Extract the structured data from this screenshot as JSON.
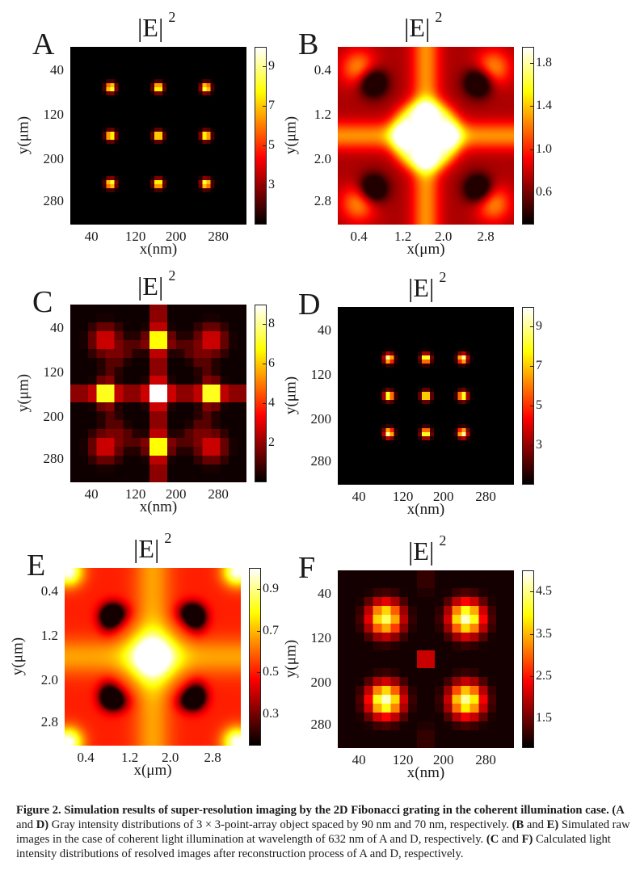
{
  "figure": {
    "caption_title": "Figure 2.  Simulation results of super-resolution imaging by the 2D Fibonacci grating in the coherent illumination case.",
    "caption_parts": [
      {
        "b": " (A"
      },
      {
        "t": " and "
      },
      {
        "b": "D)"
      },
      {
        "t": " Gray intensity distributions of 3 × 3-point-array object spaced by 90 nm and 70 nm, respectively. "
      },
      {
        "b": "(B"
      },
      {
        "t": " and "
      },
      {
        "b": "E)"
      },
      {
        "t": " Simulated raw images in the case of coherent light illumination at wavelength of 632 nm of A and D, respectively. "
      },
      {
        "b": "(C"
      },
      {
        "t": " and "
      },
      {
        "b": "F)"
      },
      {
        "t": " Calculated light intensity distributions of resolved images after reconstruction process of A and D, respectively."
      }
    ]
  },
  "chart_data": [
    {
      "id": "A",
      "type": "heatmap",
      "title": "|E|",
      "title_sup": "2",
      "kind": "dots9",
      "spacing_nm": 90,
      "xlabel": "x(nm)",
      "ylabel": "y(μm)",
      "xticks": [
        "40",
        "120",
        "200",
        "280"
      ],
      "yticks": [
        "40",
        "120",
        "200",
        "280"
      ],
      "colorbar": {
        "ticks": [
          "9",
          "7",
          "5",
          "3"
        ],
        "range": [
          1,
          10
        ]
      }
    },
    {
      "id": "B",
      "type": "heatmap",
      "title": "|E|",
      "title_sup": "2",
      "kind": "coherent-raw",
      "xlabel": "x(μm)",
      "ylabel": "y(μm)",
      "xticks": [
        "0.4",
        "1.2",
        "2.0",
        "2.8"
      ],
      "yticks": [
        "0.4",
        "1.2",
        "2.0",
        "2.8"
      ],
      "colorbar": {
        "ticks": [
          "1.8",
          "1.4",
          "1.0",
          "0.6"
        ],
        "range": [
          0.3,
          1.95
        ]
      }
    },
    {
      "id": "C",
      "type": "heatmap",
      "title": "|E|",
      "title_sup": "2",
      "kind": "reconstructed-90",
      "xlabel": "x(nm)",
      "ylabel": "y(μm)",
      "xticks": [
        "40",
        "120",
        "200",
        "280"
      ],
      "yticks": [
        "40",
        "120",
        "200",
        "280"
      ],
      "colorbar": {
        "ticks": [
          "8",
          "6",
          "4",
          "2"
        ],
        "range": [
          0,
          9
        ]
      }
    },
    {
      "id": "D",
      "type": "heatmap",
      "title": "|E|",
      "title_sup": "2",
      "kind": "dots9",
      "spacing_nm": 70,
      "xlabel": "x(nm)",
      "ylabel": "y(μm)",
      "xticks": [
        "40",
        "120",
        "200",
        "280"
      ],
      "yticks": [
        "40",
        "120",
        "200",
        "280"
      ],
      "colorbar": {
        "ticks": [
          "9",
          "7",
          "5",
          "3"
        ],
        "range": [
          1,
          10
        ]
      }
    },
    {
      "id": "E",
      "type": "heatmap",
      "title": "|E|",
      "title_sup": "2",
      "kind": "coherent-raw-broad",
      "xlabel": "x(μm)",
      "ylabel": "y(μm)",
      "xticks": [
        "0.4",
        "1.2",
        "2.0",
        "2.8"
      ],
      "yticks": [
        "0.4",
        "1.2",
        "2.0",
        "2.8"
      ],
      "colorbar": {
        "ticks": [
          "0.9",
          "0.7",
          "0.5",
          "0.3"
        ],
        "range": [
          0.15,
          1.0
        ]
      }
    },
    {
      "id": "F",
      "type": "heatmap",
      "title": "|E|",
      "title_sup": "2",
      "kind": "reconstructed-70",
      "xlabel": "x(nm)",
      "ylabel": "y(μm)",
      "xticks": [
        "40",
        "120",
        "200",
        "280"
      ],
      "yticks": [
        "40",
        "120",
        "200",
        "280"
      ],
      "colorbar": {
        "ticks": [
          "4.5",
          "3.5",
          "2.5",
          "1.5"
        ],
        "range": [
          0.8,
          5.0
        ]
      }
    }
  ]
}
